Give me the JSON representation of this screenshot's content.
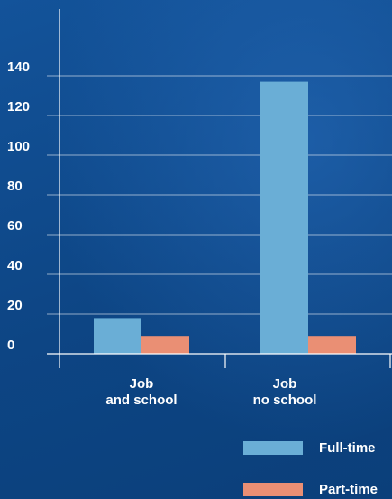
{
  "chart_data": {
    "type": "bar",
    "categories": [
      [
        "Job",
        "and school"
      ],
      [
        "Job",
        "no school"
      ]
    ],
    "series": [
      {
        "name": "Full-time",
        "color": "#6aaed6",
        "values": [
          18,
          137
        ]
      },
      {
        "name": "Part-time",
        "color": "#ea8f74",
        "values": [
          9,
          9
        ]
      }
    ],
    "yticks": [
      0,
      20,
      40,
      60,
      80,
      100,
      120,
      140
    ],
    "ylim": [
      0,
      160
    ],
    "grid": true,
    "legend_position": "bottom-right",
    "title": "",
    "xlabel": "",
    "ylabel": ""
  }
}
